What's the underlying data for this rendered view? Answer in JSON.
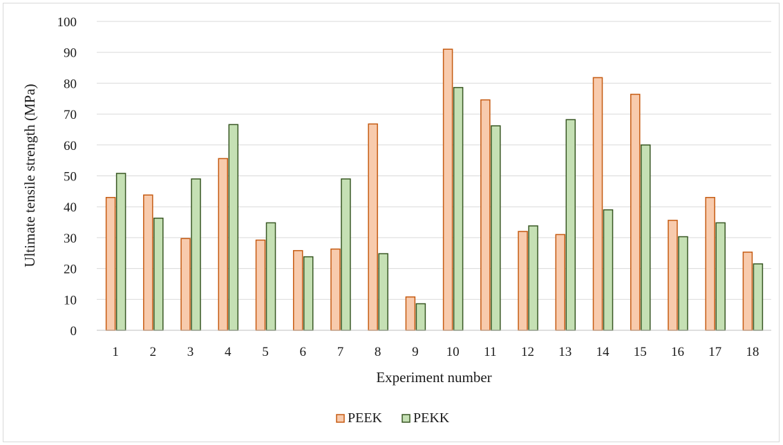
{
  "chart_data": {
    "type": "bar",
    "title": "",
    "xlabel": "Experiment number",
    "ylabel": "Ultimate tensile strength (MPa)",
    "ylim": [
      0,
      100
    ],
    "yticks": [
      "0",
      "10",
      "20",
      "30",
      "40",
      "50",
      "60",
      "70",
      "80",
      "90",
      "100"
    ],
    "categories": [
      "1",
      "2",
      "3",
      "4",
      "5",
      "6",
      "7",
      "8",
      "9",
      "10",
      "11",
      "12",
      "13",
      "14",
      "15",
      "16",
      "17",
      "18"
    ],
    "series": [
      {
        "name": "PEEK",
        "fill": "#f8cbad",
        "stroke": "#c55a11",
        "values": [
          43,
          43.8,
          29.7,
          55.6,
          29.2,
          25.8,
          26.3,
          66.8,
          10.8,
          91,
          74.6,
          32,
          31,
          81.8,
          76.4,
          35.6,
          43,
          25.3
        ]
      },
      {
        "name": "PEKK",
        "fill": "#c5e0b4",
        "stroke": "#385723",
        "values": [
          50.8,
          36.3,
          49,
          66.6,
          34.8,
          23.8,
          49,
          24.8,
          8.6,
          78.6,
          66.2,
          33.8,
          68.2,
          39,
          60,
          30.3,
          34.8,
          21.5
        ]
      }
    ],
    "grid": true,
    "legend_position": "bottom"
  }
}
